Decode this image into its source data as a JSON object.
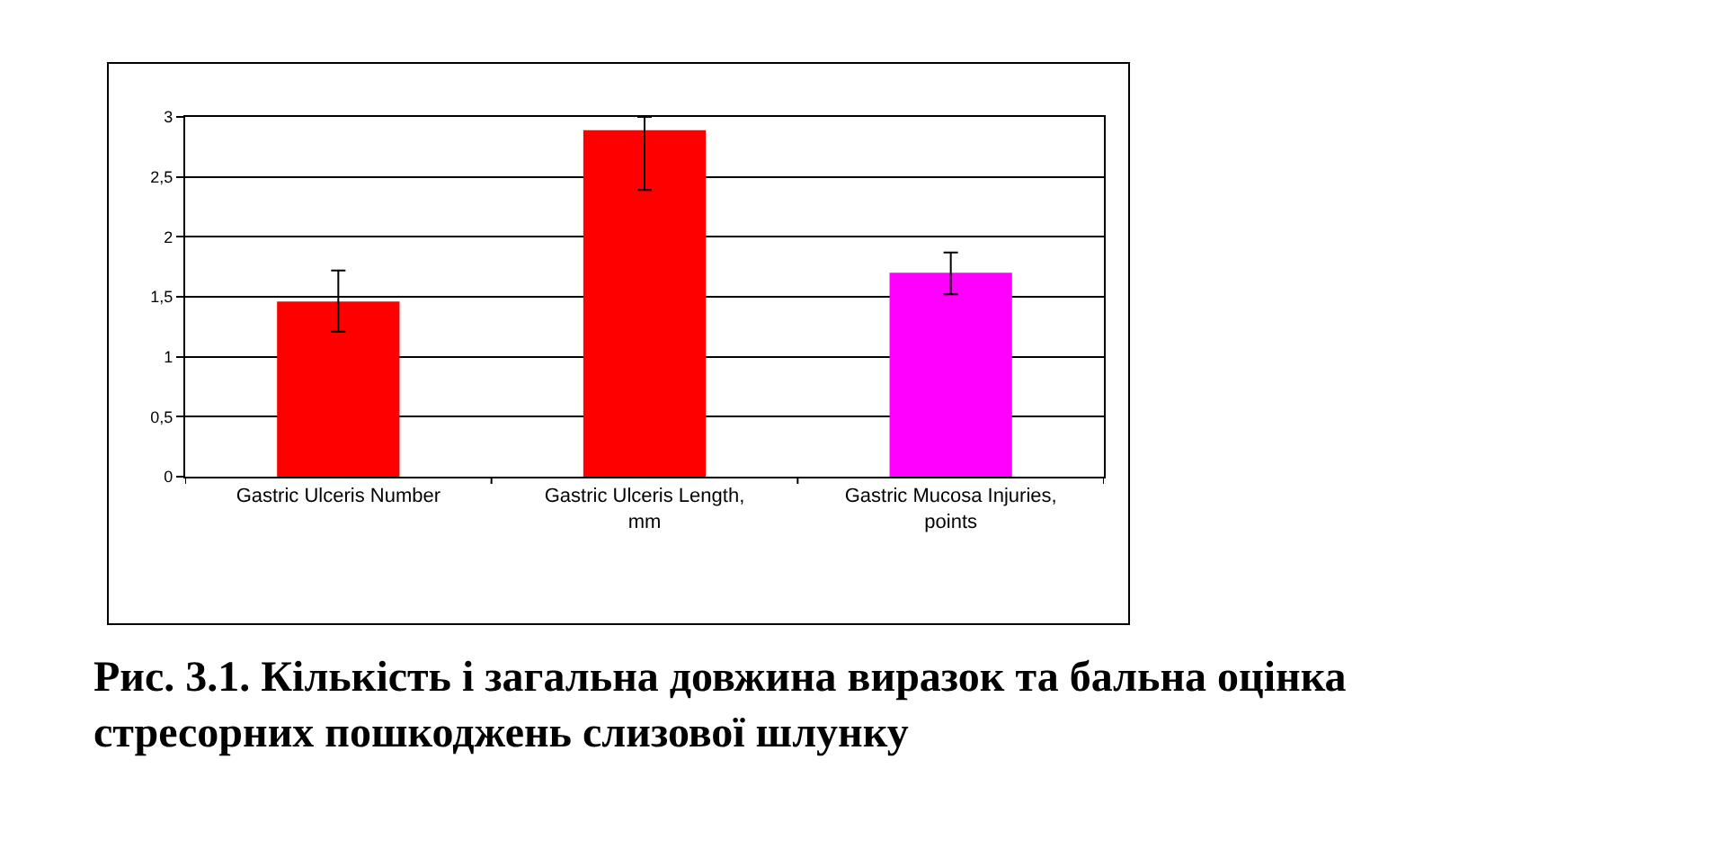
{
  "chart_data": {
    "type": "bar",
    "categories": [
      "Gastric Ulceris Number",
      "Gastric Ulceris Length, mm",
      "Gastric Mucosa Injuries, points"
    ],
    "values": [
      1.46,
      2.89,
      1.7
    ],
    "colors": [
      "#ff0000",
      "#ff0000",
      "#ff00ff"
    ],
    "errors": [
      [
        1.21,
        1.72
      ],
      [
        2.39,
        3.0
      ],
      [
        1.52,
        1.87
      ]
    ],
    "ylim": [
      0,
      3
    ],
    "yticks": [
      0,
      {
        "value": 0.5,
        "label": "0,5"
      },
      1,
      {
        "value": 1.5,
        "label": "1,5"
      },
      2,
      {
        "value": 2.5,
        "label": "2,5"
      },
      3
    ],
    "grid": "y",
    "annotations": [
      "Рис. 3.1. Кількість і загальна довжина виразок та бальна оцінка стресорних пошкоджень слизової шлунку"
    ]
  }
}
